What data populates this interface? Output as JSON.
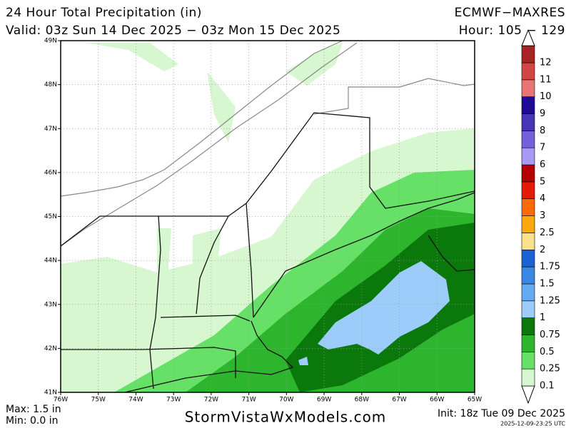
{
  "header": {
    "title": "24 Hour Total Precipitation (in)",
    "model": "ECMWF−MAXRES",
    "valid": "Valid: 03z Sun 14 Dec 2025 − 03z Mon 15 Dec 2025",
    "hour": "Hour: 105 − 129"
  },
  "map": {
    "lat_labels": [
      "49N",
      "48N",
      "47N",
      "46N",
      "45N",
      "44N",
      "43N",
      "42N",
      "41N"
    ],
    "lon_labels": [
      "76W",
      "75W",
      "74W",
      "73W",
      "72W",
      "71W",
      "70W",
      "69W",
      "68W",
      "67W",
      "66W",
      "65W"
    ]
  },
  "legend": {
    "levels": [
      {
        "label": "0.1",
        "color": "#d6f7cf"
      },
      {
        "label": "0.25",
        "color": "#66e066"
      },
      {
        "label": "0.5",
        "color": "#2db52d"
      },
      {
        "label": "0.75",
        "color": "#0a780a"
      },
      {
        "label": "1",
        "color": "#9ccdfa"
      },
      {
        "label": "1.25",
        "color": "#63aaf2"
      },
      {
        "label": "1.5",
        "color": "#3a88e6"
      },
      {
        "label": "1.75",
        "color": "#1b63d2"
      },
      {
        "label": "2",
        "color": "#fbe28a"
      },
      {
        "label": "2.5",
        "color": "#fba90c"
      },
      {
        "label": "3",
        "color": "#fb6a08"
      },
      {
        "label": "4",
        "color": "#e51a08"
      },
      {
        "label": "5",
        "color": "#b40000"
      },
      {
        "label": "6",
        "color": "#a79af5"
      },
      {
        "label": "7",
        "color": "#7460d8"
      },
      {
        "label": "8",
        "color": "#4635b8"
      },
      {
        "label": "9",
        "color": "#1f0a96"
      },
      {
        "label": "10",
        "color": "#ea7474"
      },
      {
        "label": "11",
        "color": "#d24545"
      },
      {
        "label": "12",
        "color": "#a82424"
      }
    ]
  },
  "footer": {
    "max": "Max: 1.5 in",
    "min": "Min: 0.0 in",
    "site": "StormVistaWxModels.com",
    "init": "Init: 18z Tue 09 Dec 2025",
    "stamp": "2025-12-09-23:25 UTC"
  }
}
